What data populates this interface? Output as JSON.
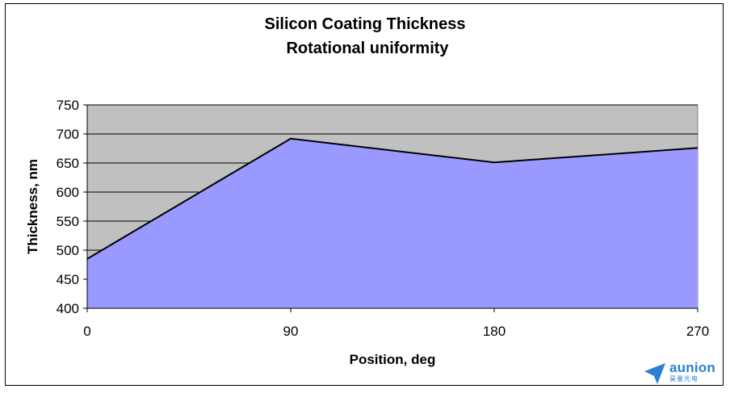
{
  "chart_data": {
    "type": "area",
    "title": [
      "Silicon Coating Thickness",
      "Rotational uniformity"
    ],
    "xlabel": "Position, deg",
    "ylabel": "Thickness, nm",
    "categories": [
      "0",
      "90",
      "180",
      "270"
    ],
    "x": [
      0,
      90,
      180,
      270
    ],
    "values": [
      485,
      692,
      651,
      676
    ],
    "ylim": [
      400,
      750
    ],
    "yticks": [
      400,
      450,
      500,
      550,
      600,
      650,
      700,
      750
    ],
    "grid": true,
    "legend": "none",
    "colors": {
      "plot_background": "#c0c0c0",
      "area_fill": "#9999ff",
      "line": "#000000"
    }
  },
  "watermark": {
    "brand": "aunion",
    "sub": "昊量光电",
    "icon": "paper-plane-logo-icon",
    "color": "#2a7fd4"
  }
}
